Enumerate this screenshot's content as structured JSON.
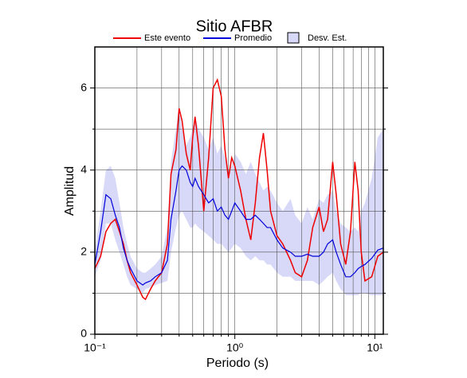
{
  "chart_data": {
    "type": "line",
    "title": "Sitio AFBR",
    "xlabel": "Periodo (s)",
    "ylabel": "Amplitud",
    "xscale": "log",
    "xlim": [
      0.1,
      11.5
    ],
    "ylim": [
      0,
      7
    ],
    "xticks": [
      {
        "value": 0.1,
        "label": "10⁻¹"
      },
      {
        "value": 1,
        "label": "10⁰"
      },
      {
        "value": 10,
        "label": "10¹"
      }
    ],
    "xminor": [
      0.2,
      0.3,
      0.4,
      0.5,
      0.6,
      0.7,
      0.8,
      0.9,
      2,
      3,
      4,
      5,
      6,
      7,
      8,
      9
    ],
    "yticks": [
      0,
      2,
      4,
      6
    ],
    "yminor": [
      1,
      3,
      5
    ],
    "grid": true,
    "x": [
      0.1,
      0.11,
      0.12,
      0.13,
      0.14,
      0.15,
      0.16,
      0.17,
      0.18,
      0.2,
      0.22,
      0.23,
      0.25,
      0.27,
      0.3,
      0.33,
      0.35,
      0.38,
      0.4,
      0.42,
      0.45,
      0.48,
      0.5,
      0.52,
      0.55,
      0.6,
      0.65,
      0.7,
      0.75,
      0.8,
      0.85,
      0.9,
      0.95,
      1.0,
      1.1,
      1.2,
      1.3,
      1.4,
      1.5,
      1.6,
      1.7,
      1.8,
      2.0,
      2.2,
      2.5,
      2.7,
      3.0,
      3.3,
      3.6,
      4.0,
      4.3,
      4.6,
      5.0,
      5.3,
      5.7,
      6.2,
      6.7,
      7.2,
      7.6,
      8.0,
      8.5,
      9.5,
      10.5,
      11.5
    ],
    "series": [
      {
        "name": "Este evento",
        "color": "#ee0000",
        "values": [
          1.6,
          1.9,
          2.5,
          2.7,
          2.8,
          2.5,
          2.2,
          1.8,
          1.5,
          1.2,
          0.9,
          0.85,
          1.1,
          1.3,
          1.5,
          2.2,
          3.9,
          4.5,
          5.5,
          5.2,
          4.4,
          4.0,
          4.8,
          5.3,
          4.6,
          3.0,
          4.3,
          6.0,
          6.2,
          5.8,
          4.5,
          3.8,
          4.3,
          4.1,
          3.5,
          2.8,
          2.3,
          3.2,
          4.3,
          4.9,
          4.0,
          3.0,
          2.4,
          2.2,
          1.8,
          1.5,
          1.4,
          1.8,
          2.6,
          3.1,
          2.5,
          2.8,
          4.2,
          3.4,
          2.2,
          1.7,
          2.5,
          4.2,
          3.5,
          2.0,
          1.3,
          1.4,
          1.9,
          2.0
        ]
      },
      {
        "name": "Promedio",
        "color": "#0000dd",
        "values": [
          1.7,
          2.5,
          3.4,
          3.3,
          2.9,
          2.6,
          2.1,
          1.8,
          1.6,
          1.3,
          1.2,
          1.25,
          1.3,
          1.4,
          1.5,
          1.8,
          2.8,
          3.5,
          4.0,
          4.1,
          4.0,
          3.7,
          3.6,
          3.8,
          3.6,
          3.4,
          3.2,
          3.3,
          3.0,
          3.1,
          2.9,
          2.8,
          3.0,
          3.2,
          3.0,
          2.8,
          2.8,
          2.9,
          2.8,
          2.7,
          2.6,
          2.6,
          2.3,
          2.1,
          2.0,
          1.9,
          1.9,
          1.95,
          1.9,
          1.9,
          2.0,
          2.2,
          2.3,
          2.0,
          1.7,
          1.4,
          1.4,
          1.5,
          1.6,
          1.65,
          1.7,
          1.85,
          2.05,
          2.1
        ]
      }
    ],
    "band": {
      "name": "Desv. Est.",
      "color": "#d8d8f8",
      "upper": [
        2.0,
        3.0,
        4.0,
        4.1,
        3.8,
        3.2,
        2.6,
        2.2,
        1.9,
        1.6,
        1.5,
        1.5,
        1.6,
        1.7,
        1.9,
        2.6,
        4.2,
        5.0,
        5.6,
        5.0,
        4.6,
        4.8,
        5.0,
        5.3,
        5.0,
        4.8,
        4.5,
        4.8,
        4.4,
        4.6,
        4.3,
        4.0,
        4.1,
        4.4,
        4.2,
        3.9,
        4.2,
        3.9,
        3.7,
        3.5,
        3.6,
        3.5,
        3.2,
        3.0,
        3.3,
        2.9,
        2.7,
        3.1,
        2.8,
        3.3,
        3.2,
        3.4,
        3.5,
        3.0,
        2.7,
        2.6,
        2.5,
        2.6,
        2.5,
        3.0,
        3.2,
        3.8,
        4.8,
        5.0
      ],
      "lower": [
        1.4,
        1.8,
        2.7,
        2.7,
        2.3,
        2.0,
        1.7,
        1.4,
        1.2,
        1.1,
        1.0,
        1.1,
        1.15,
        1.2,
        1.25,
        1.3,
        2.0,
        2.6,
        2.9,
        3.0,
        2.8,
        2.6,
        2.6,
        2.7,
        2.6,
        2.5,
        2.4,
        2.3,
        2.2,
        2.2,
        2.1,
        2.0,
        2.1,
        2.2,
        2.1,
        1.9,
        1.8,
        1.9,
        1.8,
        1.8,
        1.7,
        1.7,
        1.5,
        1.4,
        1.4,
        1.3,
        1.3,
        1.3,
        1.3,
        1.2,
        1.3,
        1.4,
        1.5,
        1.3,
        1.1,
        0.95,
        0.95,
        0.95,
        0.95,
        1.0,
        1.0,
        0.95,
        0.95,
        0.95
      ]
    }
  }
}
